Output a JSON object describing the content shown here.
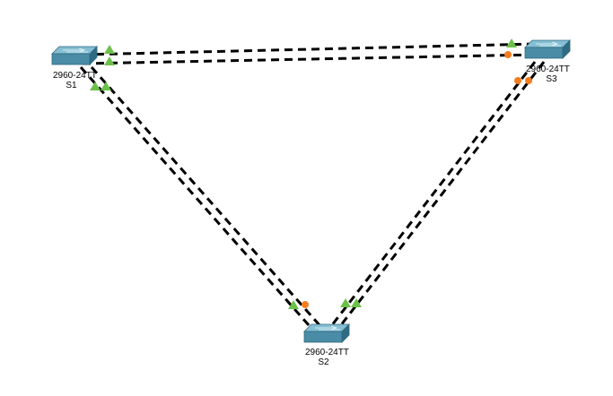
{
  "topology": {
    "devices": [
      {
        "id": "S1",
        "model": "2960-24TT",
        "name": "S1"
      },
      {
        "id": "S2",
        "model": "2960-24TT",
        "name": "S2"
      },
      {
        "id": "S3",
        "model": "2960-24TT",
        "name": "S3"
      }
    ],
    "links": [
      {
        "between": [
          "S1",
          "S3"
        ],
        "count": 2,
        "s1_end": "green-up",
        "s3_end": "green-up/orange"
      },
      {
        "between": [
          "S1",
          "S2"
        ],
        "count": 2,
        "s1_end": "green-up",
        "s2_end": "green-up/orange"
      },
      {
        "between": [
          "S3",
          "S2"
        ],
        "count": 2,
        "s3_end": "orange",
        "s2_end": "green-up"
      }
    ],
    "colors": {
      "link_up": "#6cc04a",
      "link_blocking": "#f57c1f",
      "switch_front": "#4f8ea8",
      "switch_top": "#8cc3d6",
      "cable": "#000000"
    },
    "icons": [
      "switch-icon",
      "link-up-triangle-icon",
      "blocking-port-dot-icon"
    ]
  }
}
